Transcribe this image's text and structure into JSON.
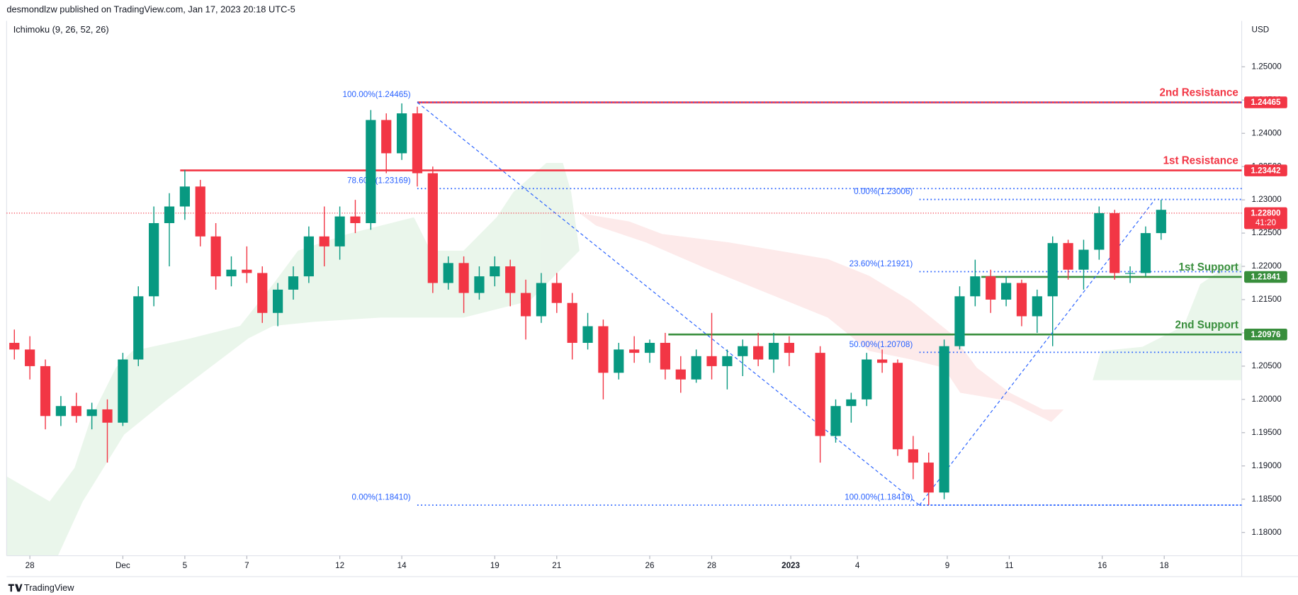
{
  "header": {
    "published": "desmondlzw published on TradingView.com, Jan 17, 2023 20:18 UTC-5",
    "indicator": "Ichimoku (9, 26, 52, 26)",
    "currency": "USD",
    "brand": "TradingView"
  },
  "chart_data": {
    "type": "candlestick",
    "x": [
      -0.5,
      0,
      0.5,
      1,
      1.5,
      2,
      2.5,
      3,
      3.5,
      4,
      4.5,
      5,
      5.5,
      6,
      6.5,
      7,
      7.5,
      8,
      8.5,
      9,
      9.5,
      10,
      10.5,
      11,
      11.5,
      12,
      12.5,
      13,
      13.5,
      14,
      14.5,
      15,
      15.5,
      16,
      16.5,
      17,
      17.5,
      18,
      18.5,
      19,
      19.5,
      20,
      20.5,
      21,
      21.5,
      22,
      22.5,
      23,
      23.5,
      24,
      24.5,
      25.5,
      26,
      26.5,
      27,
      27.5,
      28,
      28.5,
      29,
      29.5,
      30,
      30.5,
      31,
      31.5,
      32,
      32.5,
      33,
      33.5,
      34,
      34.5,
      35,
      35.5,
      36,
      36.5
    ],
    "open": [
      1.2085,
      1.2075,
      1.205,
      1.1975,
      1.199,
      1.1975,
      1.1985,
      1.1965,
      1.206,
      1.2155,
      1.2265,
      1.229,
      1.232,
      1.2245,
      1.2185,
      1.2195,
      1.219,
      1.213,
      1.2165,
      1.2185,
      1.2245,
      1.223,
      1.2275,
      1.2265,
      1.242,
      1.237,
      1.243,
      1.234,
      1.2175,
      1.2205,
      1.216,
      1.2185,
      1.22,
      1.216,
      1.2125,
      1.2175,
      1.2145,
      1.2085,
      1.211,
      1.204,
      1.2075,
      1.207,
      1.2085,
      1.2045,
      1.203,
      1.2065,
      1.205,
      1.2065,
      1.208,
      1.206,
      1.2085,
      1.207,
      1.1945,
      1.199,
      1.2,
      1.206,
      1.2055,
      1.1925,
      1.1905,
      1.186,
      1.208,
      1.2155,
      1.2185,
      1.215,
      1.2175,
      1.2125,
      1.2155,
      1.2235,
      1.2195,
      1.2225,
      1.228,
      1.219,
      1.219,
      1.225
    ],
    "high": [
      1.2105,
      1.2095,
      1.206,
      1.2005,
      1.201,
      1.1995,
      1.2,
      1.207,
      1.217,
      1.229,
      1.231,
      1.2345,
      1.233,
      1.2265,
      1.2215,
      1.223,
      1.22,
      1.2175,
      1.22,
      1.226,
      1.229,
      1.229,
      1.23,
      1.2435,
      1.243,
      1.2445,
      1.244,
      1.235,
      1.2215,
      1.2215,
      1.22,
      1.2215,
      1.221,
      1.218,
      1.219,
      1.219,
      1.216,
      1.213,
      1.212,
      1.2085,
      1.2095,
      1.209,
      1.21,
      1.2065,
      1.2075,
      1.213,
      1.2075,
      1.209,
      1.21,
      1.21,
      1.2095,
      1.208,
      1.2,
      1.201,
      1.207,
      1.2075,
      1.206,
      1.1945,
      1.192,
      1.209,
      1.217,
      1.221,
      1.2195,
      1.2185,
      1.218,
      1.2165,
      1.2245,
      1.224,
      1.224,
      1.229,
      1.2285,
      1.22,
      1.226,
      1.23
    ],
    "low": [
      1.206,
      1.203,
      1.1955,
      1.196,
      1.1965,
      1.1955,
      1.1905,
      1.196,
      1.205,
      1.214,
      1.22,
      1.227,
      1.223,
      1.2165,
      1.217,
      1.2175,
      1.2115,
      1.211,
      1.215,
      1.2175,
      1.22,
      1.221,
      1.225,
      1.2255,
      1.234,
      1.236,
      1.232,
      1.216,
      1.2165,
      1.213,
      1.215,
      1.217,
      1.214,
      1.209,
      1.2115,
      1.213,
      1.206,
      1.2075,
      1.2,
      1.203,
      1.2055,
      1.2055,
      1.203,
      1.201,
      1.2025,
      1.203,
      1.2015,
      1.2035,
      1.205,
      1.204,
      1.205,
      1.1905,
      1.1935,
      1.1965,
      1.199,
      1.204,
      1.1915,
      1.188,
      1.1841,
      1.185,
      1.2075,
      1.214,
      1.213,
      1.214,
      1.211,
      1.21,
      1.208,
      1.218,
      1.2165,
      1.221,
      1.218,
      1.2175,
      1.2185,
      1.224
    ],
    "close": [
      1.2075,
      1.205,
      1.1975,
      1.199,
      1.1975,
      1.1985,
      1.1965,
      1.206,
      1.2155,
      1.2265,
      1.229,
      1.232,
      1.2245,
      1.2185,
      1.2195,
      1.219,
      1.213,
      1.2165,
      1.2185,
      1.2245,
      1.223,
      1.2275,
      1.2265,
      1.242,
      1.237,
      1.243,
      1.234,
      1.2175,
      1.2205,
      1.216,
      1.2185,
      1.22,
      1.216,
      1.2125,
      1.2175,
      1.2145,
      1.2085,
      1.211,
      1.204,
      1.2075,
      1.207,
      1.2085,
      1.2045,
      1.203,
      1.2065,
      1.205,
      1.2065,
      1.208,
      1.206,
      1.2085,
      1.207,
      1.1945,
      1.199,
      1.2,
      1.206,
      1.2055,
      1.1925,
      1.1905,
      1.186,
      1.208,
      1.2155,
      1.2185,
      1.215,
      1.2175,
      1.2125,
      1.2155,
      1.2235,
      1.2195,
      1.2225,
      1.228,
      1.219,
      1.219,
      1.225,
      1.2285
    ],
    "up_color": "#089981",
    "down_color": "#f23645",
    "xlim": [
      -0.75,
      39.1
    ],
    "xticks": [
      {
        "value": 0,
        "label": "28"
      },
      {
        "value": 3,
        "label": "Dec"
      },
      {
        "value": 5,
        "label": "5"
      },
      {
        "value": 7,
        "label": "7"
      },
      {
        "value": 10,
        "label": "12"
      },
      {
        "value": 12,
        "label": "14"
      },
      {
        "value": 15,
        "label": "19"
      },
      {
        "value": 17,
        "label": "21"
      },
      {
        "value": 20,
        "label": "26"
      },
      {
        "value": 22,
        "label": "28"
      },
      {
        "value": 24.55,
        "label": "2023"
      },
      {
        "value": 26.7,
        "label": "4"
      },
      {
        "value": 29.6,
        "label": "9"
      },
      {
        "value": 31.6,
        "label": "11"
      },
      {
        "value": 34.6,
        "label": "16"
      },
      {
        "value": 36.6,
        "label": "18"
      }
    ],
    "ylim": [
      1.1765,
      1.2569
    ],
    "yticks": [
      {
        "value": 1.18,
        "label": "1.18000"
      },
      {
        "value": 1.185,
        "label": "1.18500"
      },
      {
        "value": 1.19,
        "label": "1.19000"
      },
      {
        "value": 1.195,
        "label": "1.19500"
      },
      {
        "value": 1.2,
        "label": "1.20000"
      },
      {
        "value": 1.205,
        "label": "1.20500"
      },
      {
        "value": 1.21,
        "label": "1.21000"
      },
      {
        "value": 1.215,
        "label": "1.21500"
      },
      {
        "value": 1.22,
        "label": "1.22000"
      },
      {
        "value": 1.225,
        "label": "1.22500"
      },
      {
        "value": 1.23,
        "label": "1.23000"
      },
      {
        "value": 1.235,
        "label": "1.23500"
      },
      {
        "value": 1.24,
        "label": "1.24000"
      },
      {
        "value": 1.245,
        "label": "1.24500"
      },
      {
        "value": 1.25,
        "label": "1.25000"
      }
    ],
    "levels": [
      {
        "name": "2nd Resistance",
        "value": 1.24465,
        "label": "1.24465",
        "start": 12.5,
        "color": "#f23645"
      },
      {
        "name": "1st Resistance",
        "value": 1.23442,
        "label": "1.23442",
        "start": 4.85,
        "color": "#f23645"
      },
      {
        "name": "1st Support",
        "value": 1.21841,
        "label": "1.21841",
        "start": 30.7,
        "color": "#388e3c"
      },
      {
        "name": "2nd Support",
        "value": 1.20976,
        "label": "1.20976",
        "start": 20.6,
        "color": "#388e3c"
      }
    ],
    "fibs": [
      {
        "x1": 12.5,
        "x2": 28.7,
        "levels": [
          {
            "label": "100.00%(1.24465)",
            "value": 1.24465
          },
          {
            "label": "78.60%(1.23169)",
            "value": 1.23169
          },
          {
            "label": "0.00%(1.18410)",
            "value": 1.1841
          }
        ]
      },
      {
        "x1": 28.7,
        "x2": 36.3,
        "levels": [
          {
            "label": "100.00%(1.18410)",
            "value": 1.1841
          },
          {
            "label": "50.00%(1.20708)",
            "value": 1.20708
          },
          {
            "label": "23.60%(1.21921)",
            "value": 1.21921
          },
          {
            "label": "0.00%(1.23006)",
            "value": 1.23006
          }
        ]
      }
    ],
    "fib_color": "#2962ff",
    "last_price": {
      "value": 1.228,
      "label": "1.22800",
      "countdown": "41:20",
      "color": "#f23645"
    }
  }
}
